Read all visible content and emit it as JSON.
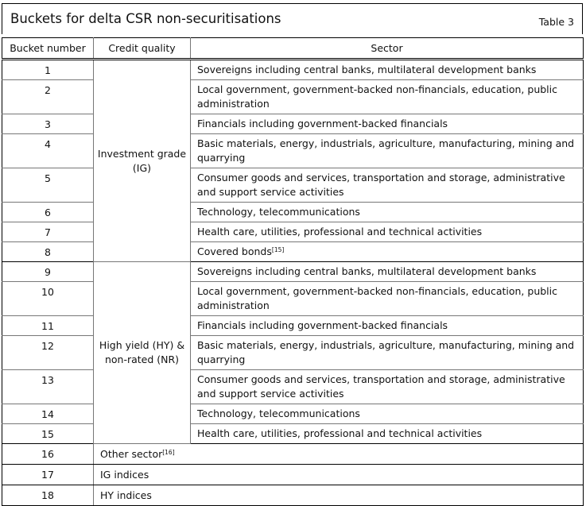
{
  "header": {
    "title": "Buckets for delta CSR non-securitisations",
    "table_label": "Table 3"
  },
  "columns": [
    "Bucket number",
    "Credit quality",
    "Sector"
  ],
  "groups": {
    "ig": "Investment grade (IG)",
    "hy": "High yield (HY) & non-rated (NR)"
  },
  "rows": [
    {
      "bucket": "1",
      "sector": "Sovereigns including central banks, multilateral development banks"
    },
    {
      "bucket": "2",
      "sector": "Local government, government-backed non-financials, education, public administration"
    },
    {
      "bucket": "3",
      "sector": "Financials including government-backed financials"
    },
    {
      "bucket": "4",
      "sector": "Basic materials, energy, industrials, agriculture, manufacturing, mining and quarrying"
    },
    {
      "bucket": "5",
      "sector": "Consumer goods and services, transportation and storage, administrative and support service activities"
    },
    {
      "bucket": "6",
      "sector": "Technology, telecommunications"
    },
    {
      "bucket": "7",
      "sector": "Health care, utilities, professional and technical activities"
    },
    {
      "bucket": "8",
      "sector": "Covered bonds",
      "note": "[15]"
    },
    {
      "bucket": "9",
      "sector": "Sovereigns including central banks, multilateral development banks"
    },
    {
      "bucket": "10",
      "sector": "Local government, government-backed non-financials, education, public administration"
    },
    {
      "bucket": "11",
      "sector": "Financials including government-backed financials"
    },
    {
      "bucket": "12",
      "sector": "Basic materials, energy, industrials, agriculture, manufacturing, mining and quarrying"
    },
    {
      "bucket": "13",
      "sector": "Consumer goods and services, transportation and storage, administrative and support service activities"
    },
    {
      "bucket": "14",
      "sector": "Technology, telecommunications"
    },
    {
      "bucket": "15",
      "sector": "Health care, utilities, professional and technical activities"
    },
    {
      "bucket": "16",
      "sector": "Other sector",
      "note": "[16]"
    },
    {
      "bucket": "17",
      "sector": "IG indices"
    },
    {
      "bucket": "18",
      "sector": "HY indices"
    }
  ]
}
